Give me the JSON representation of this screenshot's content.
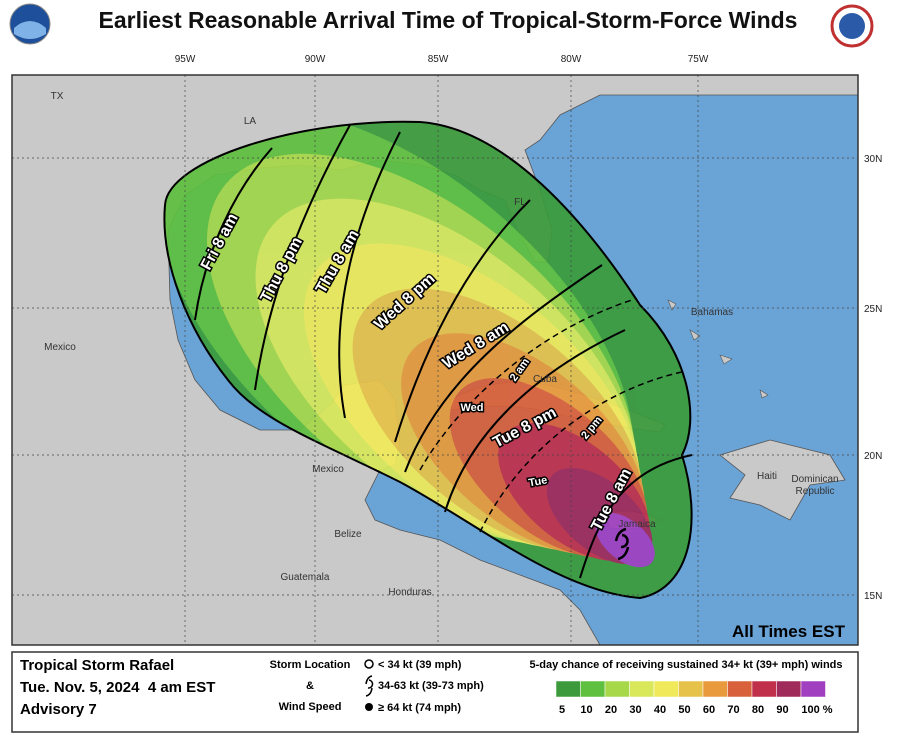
{
  "header": {
    "title": "Earliest Reasonable Arrival Time of Tropical-Storm-Force Winds"
  },
  "map": {
    "longitude_labels": [
      "95W",
      "90W",
      "85W",
      "80W",
      "75W"
    ],
    "latitude_labels": [
      "30N",
      "25N",
      "20N",
      "15N"
    ],
    "place_labels": [
      "TX",
      "LA",
      "FL",
      "Mexico",
      "Mexico",
      "Cuba",
      "Bahamas",
      "Haiti",
      "Dominican",
      "Republic",
      "Jamaica",
      "Belize",
      "Guatemala",
      "Honduras"
    ],
    "time_labels": [
      "Fri 8 am",
      "Thu 8 pm",
      "Thu 8 am",
      "Wed 8 pm",
      "Wed 8 am",
      "Wed",
      "2 am",
      "Tue 8 pm",
      "Tue",
      "2 pm",
      "Tue 8 am"
    ],
    "note": "All Times EST"
  },
  "footer": {
    "storm_name": "Tropical Storm Rafael",
    "issued": "Tue. Nov. 5, 2024  4 am EST",
    "advisory": "Advisory 7",
    "storm_location_title": "Storm Location",
    "ampersand": "&",
    "wind_speed_title": "Wind Speed",
    "wind_speed_classes": [
      "< 34 kt (39 mph)",
      "34-63 kt (39-73 mph)",
      "≥ 64 kt (74 mph)"
    ],
    "probability_title": "5-day chance of receiving sustained 34+ kt (39+ mph) winds",
    "probability_scale": {
      "labels": [
        "5",
        "10",
        "20",
        "30",
        "40",
        "50",
        "60",
        "70",
        "80",
        "90",
        "100 %"
      ],
      "colors": [
        "#3c9a3c",
        "#5fbf3f",
        "#a6d84a",
        "#d8e85a",
        "#f0ea5a",
        "#e6c24a",
        "#e89a3c",
        "#d8603a",
        "#c0304a",
        "#a02a5a",
        "#a040c0"
      ]
    }
  }
}
